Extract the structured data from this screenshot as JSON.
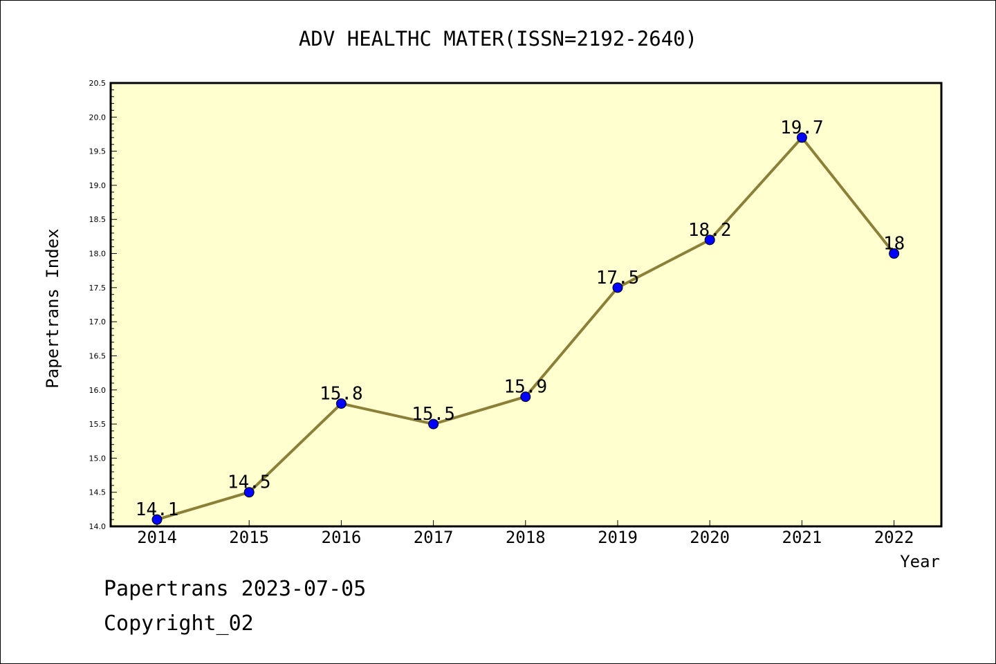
{
  "chart_data": {
    "type": "line",
    "title": "ADV HEALTHC MATER(ISSN=2192-2640)",
    "xlabel": "Year",
    "ylabel": "Papertrans Index",
    "categories": [
      "2014",
      "2015",
      "2016",
      "2017",
      "2018",
      "2019",
      "2020",
      "2021",
      "2022"
    ],
    "values": [
      14.1,
      14.5,
      15.8,
      15.5,
      15.9,
      17.5,
      18.2,
      19.7,
      18
    ],
    "data_labels": [
      "14.1",
      "14.5",
      "15.8",
      "15.5",
      "15.9",
      "17.5",
      "18.2",
      "19.7",
      "18"
    ],
    "ylim": [
      14.0,
      20.5
    ],
    "y_ticks": [
      "14.0",
      "14.5",
      "15.0",
      "15.5",
      "16.0",
      "16.5",
      "17.0",
      "17.5",
      "18.0",
      "18.5",
      "19.0",
      "19.5",
      "20.0",
      "20.5"
    ],
    "grid": false,
    "legend": "none",
    "colors": {
      "plot_background": "#ffffd0",
      "line": "#8b8038",
      "marker": "#0000ff"
    }
  },
  "footer": {
    "line1": "Papertrans 2023-07-05",
    "line2": "Copyright_02"
  }
}
